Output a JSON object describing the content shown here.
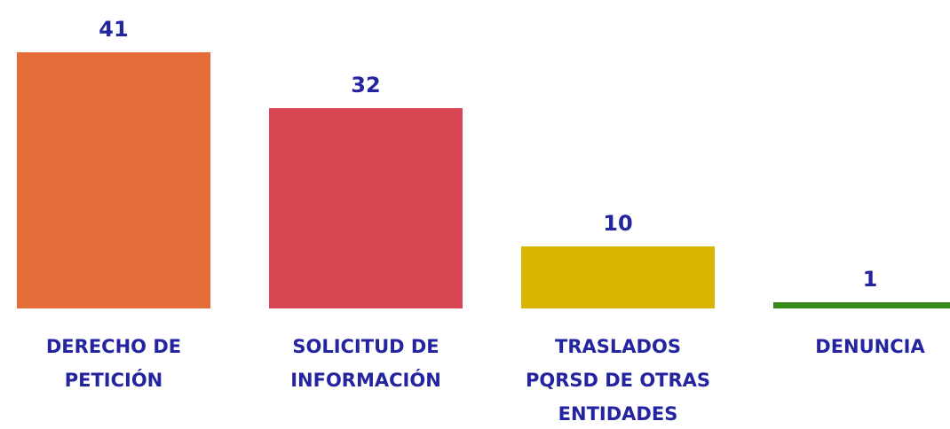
{
  "chart_data": {
    "type": "bar",
    "categories": [
      "DERECHO DE\nPETICIÓN",
      "SOLICITUD DE\nINFORMACIÓN",
      "TRASLADOS\nPQRSD DE OTRAS\nENTIDADES",
      "DENUNCIA"
    ],
    "values": [
      41,
      32,
      10,
      1
    ],
    "colors": [
      "#e56d39",
      "#d84653",
      "#d9b400",
      "#3a8a1e"
    ]
  }
}
